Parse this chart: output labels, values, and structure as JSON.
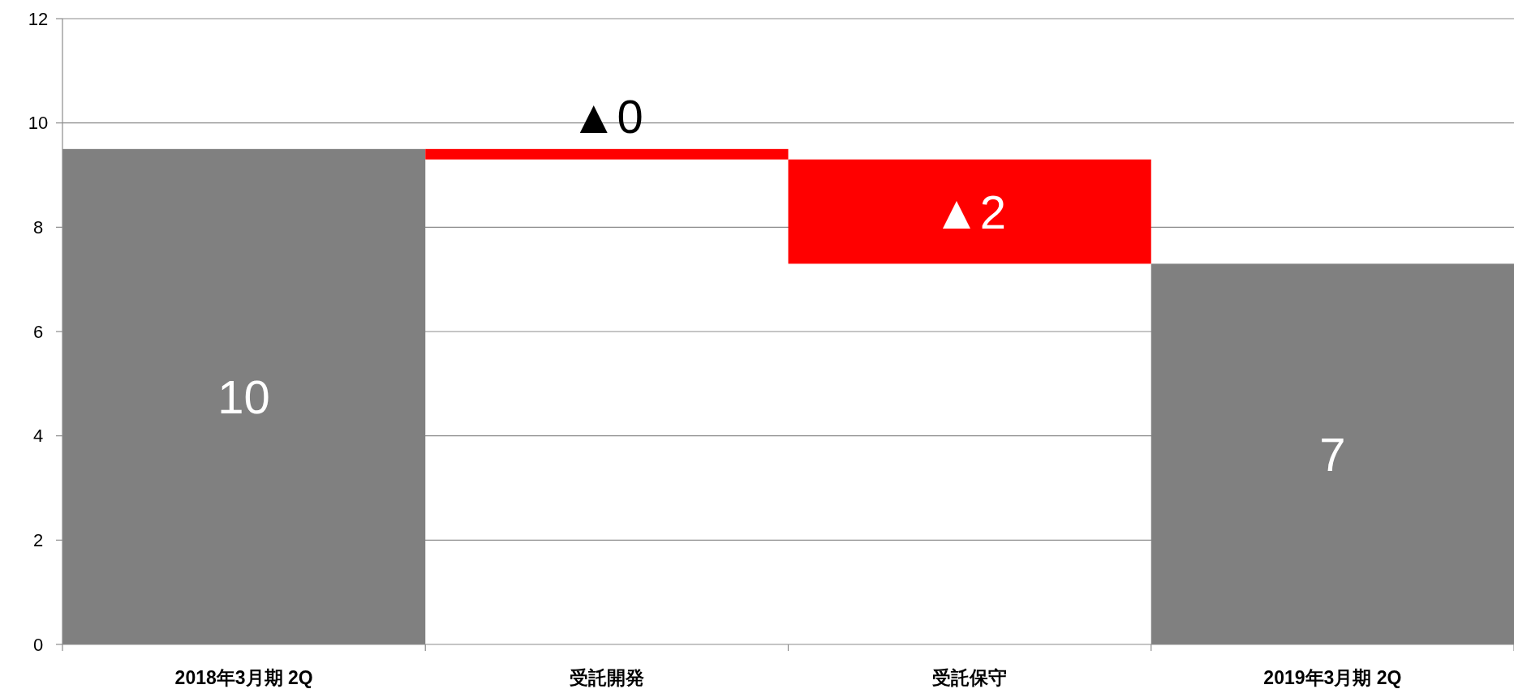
{
  "chart_data": {
    "type": "bar",
    "categories": [
      "2018年3月期 2Q",
      "受託開発",
      "受託保守",
      "2019年3月期 2Q"
    ],
    "values": [
      9.5,
      -0.2,
      -2.0,
      7.3
    ],
    "base": [
      0,
      9.5,
      9.3,
      0
    ],
    "colors": [
      "#808080",
      "#ff0000",
      "#ff0000",
      "#808080"
    ],
    "value_labels": [
      "10",
      "▲0",
      "▲2",
      "7"
    ],
    "ylim": [
      0,
      12
    ],
    "yticks": [
      0,
      2,
      4,
      6,
      8,
      10,
      12
    ],
    "grid": "y"
  }
}
